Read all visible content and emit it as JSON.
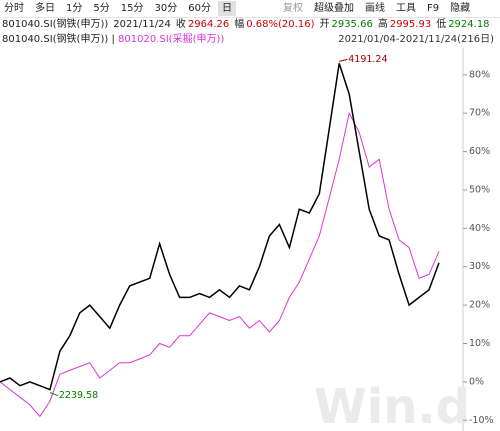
{
  "toolbar": {
    "items": [
      "分时",
      "多日",
      "1分",
      "5分",
      "15分",
      "30分",
      "60分",
      "日",
      "复权",
      "超级叠加",
      "画线",
      "工具",
      "F9",
      "隐藏"
    ]
  },
  "quote": {
    "name": "801040.SI(钢铁(申万))",
    "date": "2021/11/24",
    "fields": [
      {
        "label": "收",
        "value": "2964.26",
        "color": "#d00000"
      },
      {
        "label": "幅",
        "value": "0.68%(20.16)",
        "color": "#d00000"
      },
      {
        "label": "开",
        "value": "2935.66",
        "color": "#008000"
      },
      {
        "label": "高",
        "value": "2995.93",
        "color": "#d00000"
      },
      {
        "label": "低",
        "value": "2924.18",
        "color": "#008000"
      }
    ]
  },
  "chart_data": {
    "type": "line",
    "range_label": "2021/01/04-2021/11/24(216日)",
    "watermark": "Win.d",
    "x": [
      0,
      5,
      10,
      15,
      20,
      25,
      30,
      35,
      40,
      45,
      50,
      55,
      60,
      65,
      70,
      75,
      80,
      85,
      90,
      95,
      100,
      105,
      110,
      115,
      120,
      125,
      130,
      135,
      140,
      145,
      150,
      155,
      160,
      165,
      170,
      175,
      180,
      185,
      190,
      195,
      200,
      205,
      210,
      215,
      220
    ],
    "xlim": [
      0,
      226
    ],
    "ylim": [
      -12.8,
      87
    ],
    "yticks": [
      {
        "value": 80,
        "label": "80%"
      },
      {
        "value": 70,
        "label": "70%"
      },
      {
        "value": 60,
        "label": "60%"
      },
      {
        "value": 50,
        "label": "50%"
      },
      {
        "value": 40,
        "label": "40%"
      },
      {
        "value": 30,
        "label": "30%"
      },
      {
        "value": 20,
        "label": "20%"
      },
      {
        "value": 10,
        "label": "10%"
      },
      {
        "value": 0,
        "label": "0%"
      },
      {
        "value": -10,
        "label": "-10%"
      }
    ],
    "series": [
      {
        "name": "801040.SI(钢铁(申万))",
        "color": "#000000",
        "values": [
          0,
          1,
          -1,
          0,
          -1,
          -2,
          8,
          12,
          18,
          20,
          17,
          14,
          20,
          25,
          26,
          27,
          36,
          28,
          22,
          22,
          23,
          22,
          24,
          22,
          25,
          24,
          30,
          38,
          41,
          35,
          45,
          44,
          49,
          66,
          83,
          75,
          60,
          45,
          38,
          37,
          28,
          20,
          22,
          24,
          31
        ]
      },
      {
        "name": "801020.SI(采掘(申万))",
        "color": "#dd33dd",
        "values": [
          0,
          -2,
          -4,
          -6,
          -9,
          -5,
          2,
          3,
          4,
          5,
          1,
          3,
          5,
          5,
          6,
          7,
          10,
          9,
          12,
          12,
          15,
          18,
          17,
          16,
          17,
          14,
          16,
          13,
          16,
          22,
          26,
          32,
          38,
          48,
          58,
          70,
          65,
          56,
          58,
          45,
          37,
          35,
          27,
          28,
          34
        ]
      }
    ],
    "annotations": [
      {
        "text": "4191.24",
        "color": "#a00000"
      },
      {
        "text": "2239.58",
        "color": "#008000"
      }
    ]
  }
}
